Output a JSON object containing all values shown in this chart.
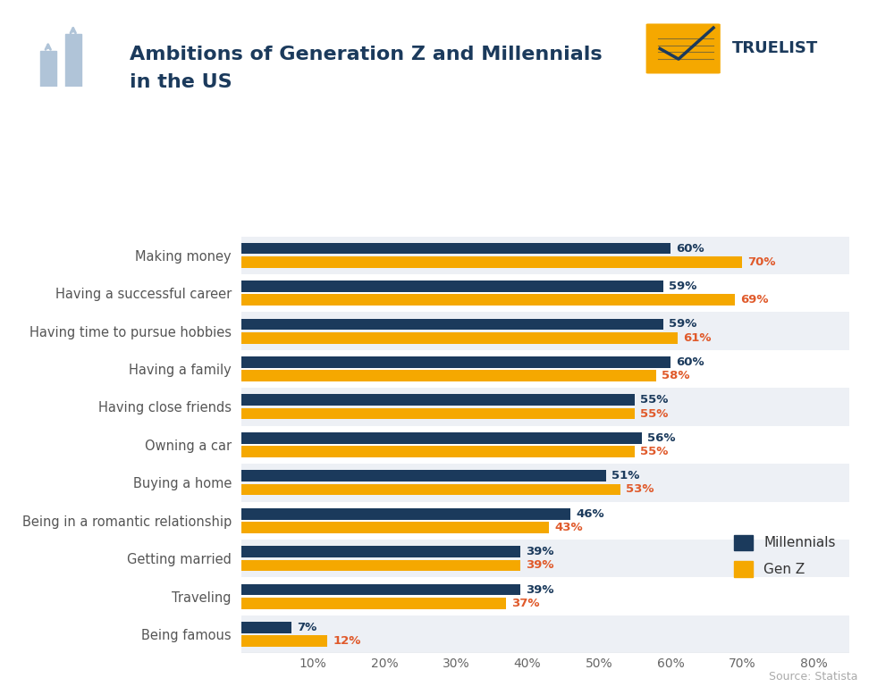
{
  "title_line1": "Ambitions of Generation Z and Millennials",
  "title_line2": "in the US",
  "categories": [
    "Making money",
    "Having a successful career",
    "Having time to pursue hobbies",
    "Having a family",
    "Having close friends",
    "Owning a car",
    "Buying a home",
    "Being in a romantic relationship",
    "Getting married",
    "Traveling",
    "Being famous"
  ],
  "millennials": [
    60,
    59,
    59,
    60,
    55,
    56,
    51,
    46,
    39,
    39,
    7
  ],
  "genz": [
    70,
    69,
    61,
    58,
    55,
    55,
    53,
    43,
    39,
    37,
    12
  ],
  "millennials_color": "#1b3a5c",
  "genz_color": "#f5a800",
  "millennials_label_color": "#1b3a5c",
  "genz_label_color": "#e05a2b",
  "background_color": "#ffffff",
  "row_bg_even": "#edf0f5",
  "row_bg_odd": "#ffffff",
  "title_color": "#1b3a5c",
  "source_text": "Source: Statista",
  "xlabel_ticks": [
    "10%",
    "20%",
    "30%",
    "40%",
    "50%",
    "60%",
    "70%",
    "80%"
  ],
  "xlabel_values": [
    10,
    20,
    30,
    40,
    50,
    60,
    70,
    80
  ],
  "bar_height": 0.3,
  "bar_gap": 0.06,
  "xlim_max": 85
}
